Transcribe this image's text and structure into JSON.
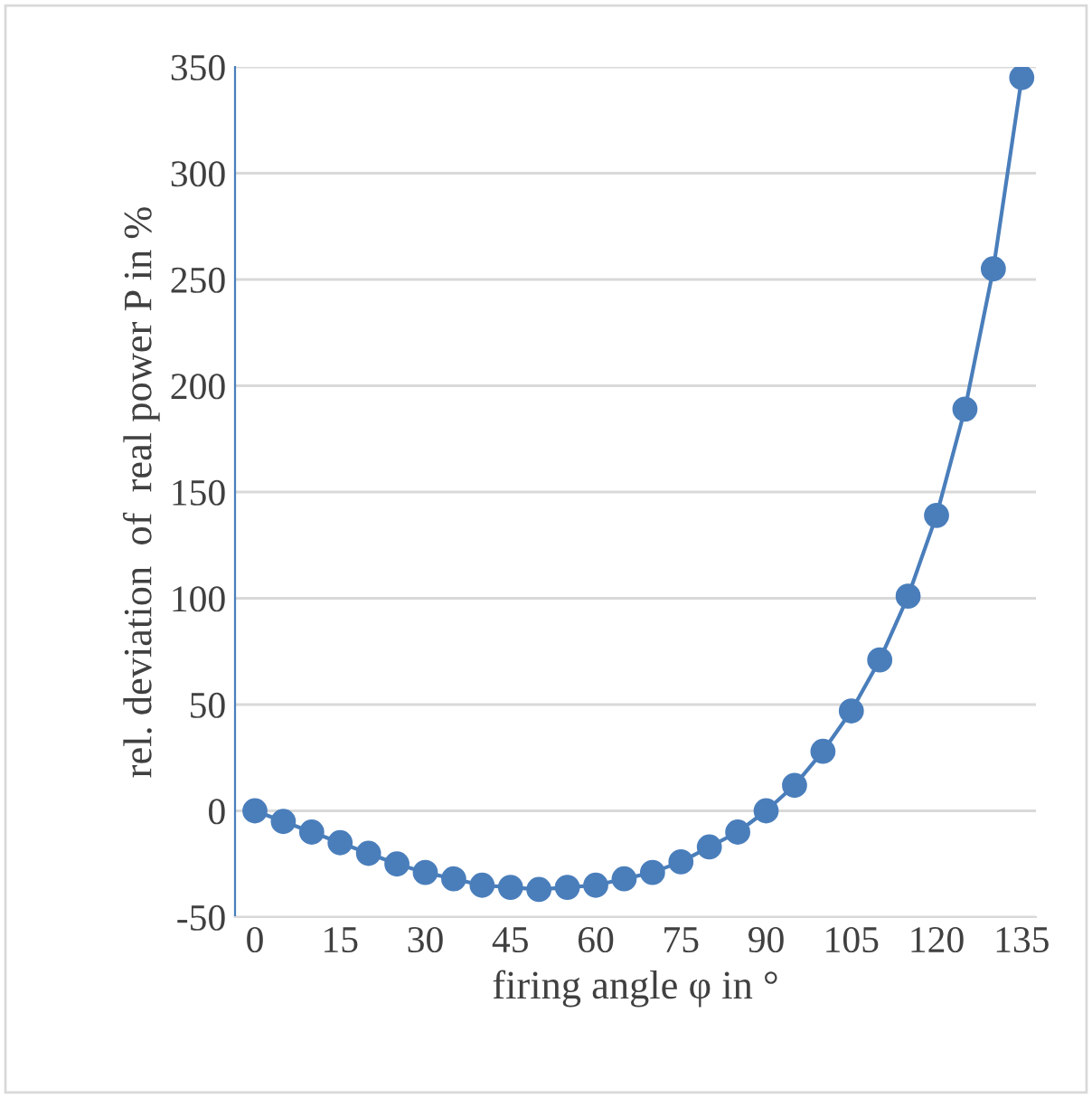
{
  "chart_data": {
    "type": "line",
    "xlabel": "firing angle φ in °",
    "ylabel": "rel. deviation  of  real power P in %",
    "x": [
      0,
      5,
      10,
      15,
      20,
      25,
      30,
      35,
      40,
      45,
      50,
      55,
      60,
      65,
      70,
      75,
      80,
      85,
      90,
      95,
      100,
      105,
      110,
      115,
      120,
      125,
      130,
      135
    ],
    "series": [
      {
        "color": "#4a7ebb",
        "values": [
          0,
          -5,
          -10,
          -15,
          -20,
          -25,
          -29,
          -32,
          -35,
          -36,
          -37,
          -36,
          -35,
          -32,
          -29,
          -24,
          -17,
          -10,
          0,
          12,
          28,
          47,
          71,
          101,
          139,
          189,
          255,
          345
        ]
      }
    ],
    "xlim": [
      -3.5,
      137.5
    ],
    "xticks": [
      0,
      15,
      30,
      45,
      60,
      75,
      90,
      105,
      120,
      135
    ],
    "ylim": [
      -50,
      350
    ],
    "yticks": [
      -50,
      0,
      50,
      100,
      150,
      200,
      250,
      300,
      350
    ],
    "grid": "y",
    "marker": "circle",
    "line_style": "solid",
    "legend": false
  }
}
